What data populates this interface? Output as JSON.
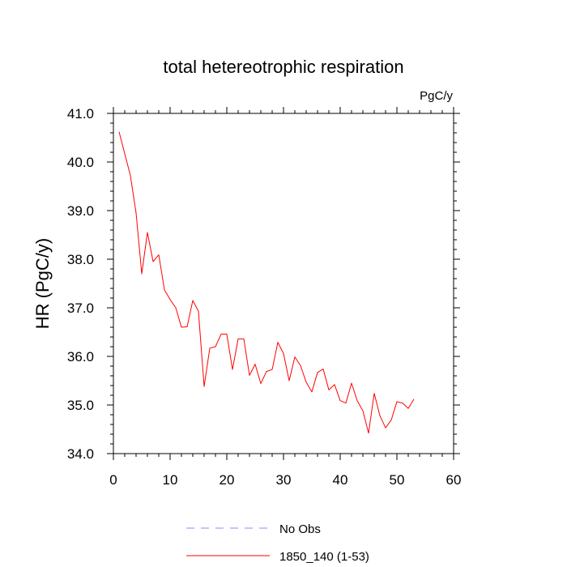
{
  "chart_data": {
    "type": "line",
    "title": "total hetereotrophic respiration",
    "units_label": "PgC/y",
    "xlabel": "",
    "ylabel": "HR  (PgC/y)",
    "xlim": [
      0,
      60
    ],
    "ylim": [
      34,
      41
    ],
    "x_ticks": [
      0,
      10,
      20,
      30,
      40,
      50,
      60
    ],
    "x_tick_labels": [
      "0",
      "10",
      "20",
      "30",
      "40",
      "50",
      "60"
    ],
    "y_ticks": [
      34,
      35,
      36,
      37,
      38,
      39,
      40,
      41
    ],
    "y_tick_labels": [
      "34.0",
      "35.0",
      "36.0",
      "37.0",
      "38.0",
      "39.0",
      "40.0",
      "41.0"
    ],
    "series": [
      {
        "name": "1850_140 (1-53)",
        "color": "#ff0000",
        "style": "solid",
        "x": [
          1,
          2,
          3,
          4,
          5,
          6,
          7,
          8,
          9,
          10,
          11,
          12,
          13,
          14,
          15,
          16,
          17,
          18,
          19,
          20,
          21,
          22,
          23,
          24,
          25,
          26,
          27,
          28,
          29,
          30,
          31,
          32,
          33,
          34,
          35,
          36,
          37,
          38,
          39,
          40,
          41,
          42,
          43,
          44,
          45,
          46,
          47,
          48,
          49,
          50,
          51,
          52,
          53
        ],
        "values": [
          40.62,
          40.17,
          39.72,
          38.95,
          37.7,
          38.55,
          37.95,
          38.09,
          37.37,
          37.17,
          37.0,
          36.6,
          36.61,
          37.15,
          36.93,
          35.38,
          36.17,
          36.2,
          36.46,
          36.46,
          35.73,
          36.36,
          36.36,
          35.61,
          35.84,
          35.44,
          35.69,
          35.73,
          36.29,
          36.06,
          35.5,
          35.99,
          35.81,
          35.47,
          35.27,
          35.67,
          35.74,
          35.31,
          35.42,
          35.09,
          35.04,
          35.45,
          35.09,
          34.88,
          34.42,
          35.24,
          34.78,
          34.53,
          34.69,
          35.07,
          35.04,
          34.93,
          35.12
        ]
      }
    ],
    "legend": {
      "position": "bottom",
      "entries": [
        {
          "label": "No Obs",
          "color": "#8888ff",
          "style": "dashed"
        },
        {
          "label": "1850_140 (1-53)",
          "color": "#ff0000",
          "style": "solid"
        }
      ]
    }
  }
}
